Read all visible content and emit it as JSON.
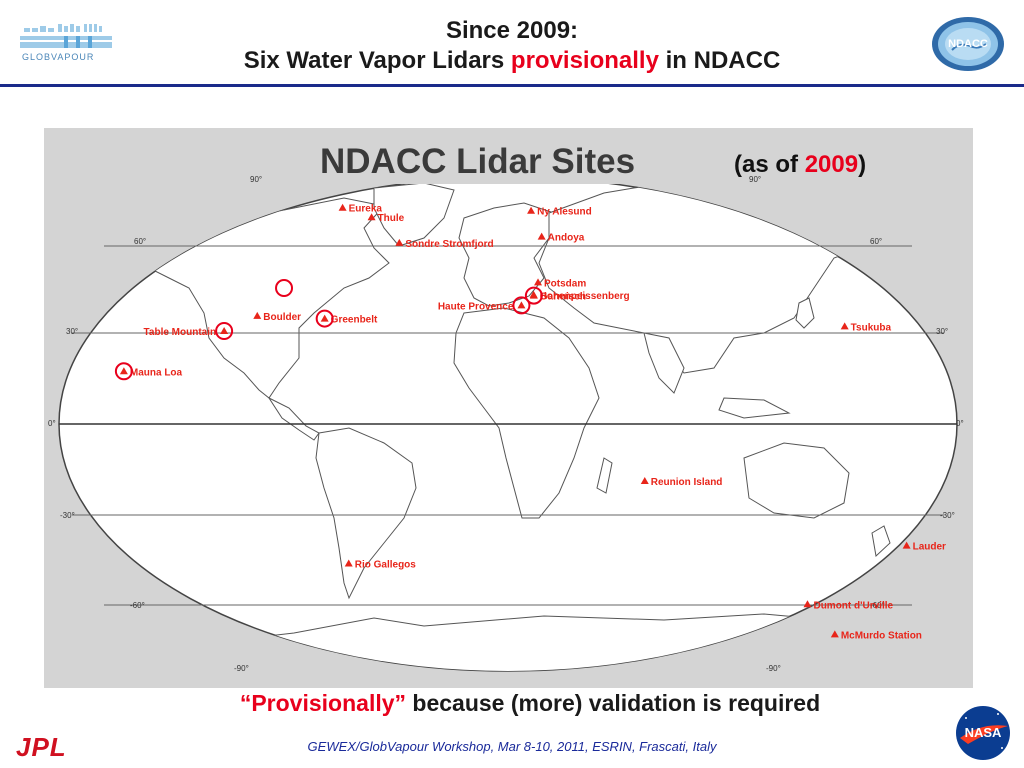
{
  "header": {
    "title_line1": "Since 2009:",
    "title_line2_start": "Six Water Vapor Lidars ",
    "title_line2_emph": "provisionally",
    "title_line2_end": " in NDACC"
  },
  "logos": {
    "left_text": "GLOBVAPOUR",
    "right_text": "NDACC",
    "jpl_text": "JPL",
    "nasa_text": "NASA"
  },
  "map": {
    "title": "NDACC Lidar Sites",
    "note_prefix": "(as of ",
    "note_year": "2009",
    "note_suffix": ")",
    "lat_labels": [
      "90°",
      "60°",
      "30°",
      "0°",
      "-30°",
      "-60°",
      "-90°"
    ],
    "sites": [
      {
        "name": "Eureka",
        "lat": 80.0,
        "lon": -86.4,
        "circled": false
      },
      {
        "name": "Thule",
        "lat": 76.5,
        "lon": -68.7,
        "circled": false
      },
      {
        "name": "Ny Alesund",
        "lat": 78.9,
        "lon": 11.9,
        "circled": false
      },
      {
        "name": "Andoya",
        "lat": 69.3,
        "lon": 16.0,
        "circled": false
      },
      {
        "name": "Sondre Stromfjord",
        "lat": 67.0,
        "lon": -50.9,
        "circled": false
      },
      {
        "name": "Potsdam",
        "lat": 52.4,
        "lon": 13.1,
        "circled": false
      },
      {
        "name": "Hohenpeissenberg",
        "lat": 47.8,
        "lon": 11.0,
        "circled": false
      },
      {
        "name": "Haute Provence",
        "lat": 43.9,
        "lon": 5.7,
        "circled": true
      },
      {
        "name": "Garmisch",
        "lat": 47.5,
        "lon": 11.1,
        "circled": true
      },
      {
        "name": "Boulder",
        "lat": 40.0,
        "lon": -105.3,
        "circled": false
      },
      {
        "name": "Greenbelt",
        "lat": 39.0,
        "lon": -76.8,
        "circled": true
      },
      {
        "name": "Table Mountain",
        "lat": 34.4,
        "lon": -117.7,
        "circled": true
      },
      {
        "name": "Mauna Loa",
        "lat": 19.5,
        "lon": -155.6,
        "circled": true
      },
      {
        "name": "Tsukuba",
        "lat": 36.1,
        "lon": 140.1,
        "circled": false
      },
      {
        "name": "Reunion Island",
        "lat": -21.1,
        "lon": 55.5,
        "circled": false
      },
      {
        "name": "Lauder",
        "lat": -45.0,
        "lon": 169.7,
        "circled": false
      },
      {
        "name": "Rio Gallegos",
        "lat": -51.6,
        "lon": -69.3,
        "circled": false
      },
      {
        "name": "Dumont d'Urville",
        "lat": -66.7,
        "lon": 140.0,
        "circled": false
      },
      {
        "name": "McMurdo Station",
        "lat": -77.8,
        "lon": 166.7,
        "circled": false
      }
    ],
    "extra_circles": [
      {
        "lat": 50.3,
        "lon": -97.0
      }
    ]
  },
  "caption": {
    "emph": "“Provisionally”",
    "rest": " because (more) validation is required"
  },
  "footer": {
    "text": "GEWEX/GlobVapour Workshop, Mar 8-10, 2011, ESRIN, Frascati, Italy"
  },
  "colors": {
    "accent_red": "#e8001c",
    "rule_blue": "#1a2a8a",
    "site_marker": "#e8251a",
    "panel_gray": "#d4d4d4"
  }
}
